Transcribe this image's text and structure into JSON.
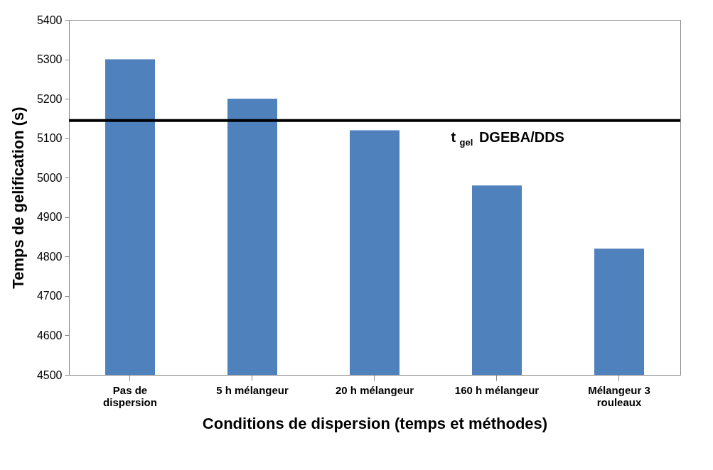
{
  "chart_data": {
    "type": "bar",
    "xlabel": "Conditions de dispersion (temps et méthodes)",
    "ylabel": "Temps de gelification (s)",
    "categories": [
      "Pas de dispersion",
      "5 h mélangeur",
      "20 h mélangeur",
      "160 h mélangeur",
      "Mélangeur 3 rouleaux"
    ],
    "values": [
      5300,
      5200,
      5120,
      4980,
      4820
    ],
    "color": "#4f81bd",
    "ylim": [
      4500,
      5400
    ],
    "yticks": [
      4500,
      4600,
      4700,
      4800,
      4900,
      5000,
      5100,
      5200,
      5300,
      5400
    ],
    "ref_lines": [
      {
        "axis": "y",
        "value": 5145,
        "label": "t$_{gel}$ DGEBA/DDS",
        "color": "#000000"
      }
    ]
  }
}
